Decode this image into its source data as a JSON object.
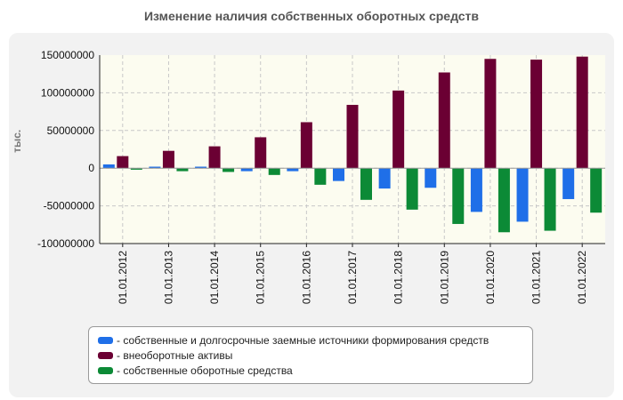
{
  "title": "Изменение наличия собственных оборотных средств",
  "chart_data": {
    "type": "bar",
    "title": "Изменение наличия собственных оборотных средств",
    "xlabel": "",
    "ylabel": "тыс.",
    "ylim": [
      -100000000,
      150000000
    ],
    "yticks": [
      150000000,
      100000000,
      50000000,
      0,
      -50000000,
      -100000000
    ],
    "ytick_labels": [
      "150000000",
      "100000000",
      "50000000",
      "0",
      "-50000000",
      "-100000000"
    ],
    "categories": [
      "01.01.2012",
      "01.01.2013",
      "01.01.2014",
      "01.01.2015",
      "01.01.2016",
      "01.01.2017",
      "01.01.2018",
      "01.01.2019",
      "01.01.2020",
      "01.01.2021",
      "01.01.2022"
    ],
    "series": [
      {
        "name": "собственные и долгосрочные заемные источники формирования средств",
        "color": "#1f6fe8",
        "values": [
          5000000,
          2000000,
          2000000,
          -4000000,
          -4000000,
          -17000000,
          -27000000,
          -26000000,
          -58000000,
          -71000000,
          -41000000
        ]
      },
      {
        "name": "внеоборотные активы",
        "color": "#6b0033",
        "values": [
          16000000,
          23000000,
          29000000,
          41000000,
          61000000,
          84000000,
          103000000,
          127000000,
          145000000,
          144000000,
          148000000
        ]
      },
      {
        "name": "собственные оборотные средства",
        "color": "#0c8a36",
        "values": [
          -2000000,
          -4000000,
          -5000000,
          -9000000,
          -22000000,
          -42000000,
          -55000000,
          -74000000,
          -85000000,
          -83000000,
          -59000000
        ]
      }
    ],
    "grid": true,
    "legend": "bottom"
  }
}
